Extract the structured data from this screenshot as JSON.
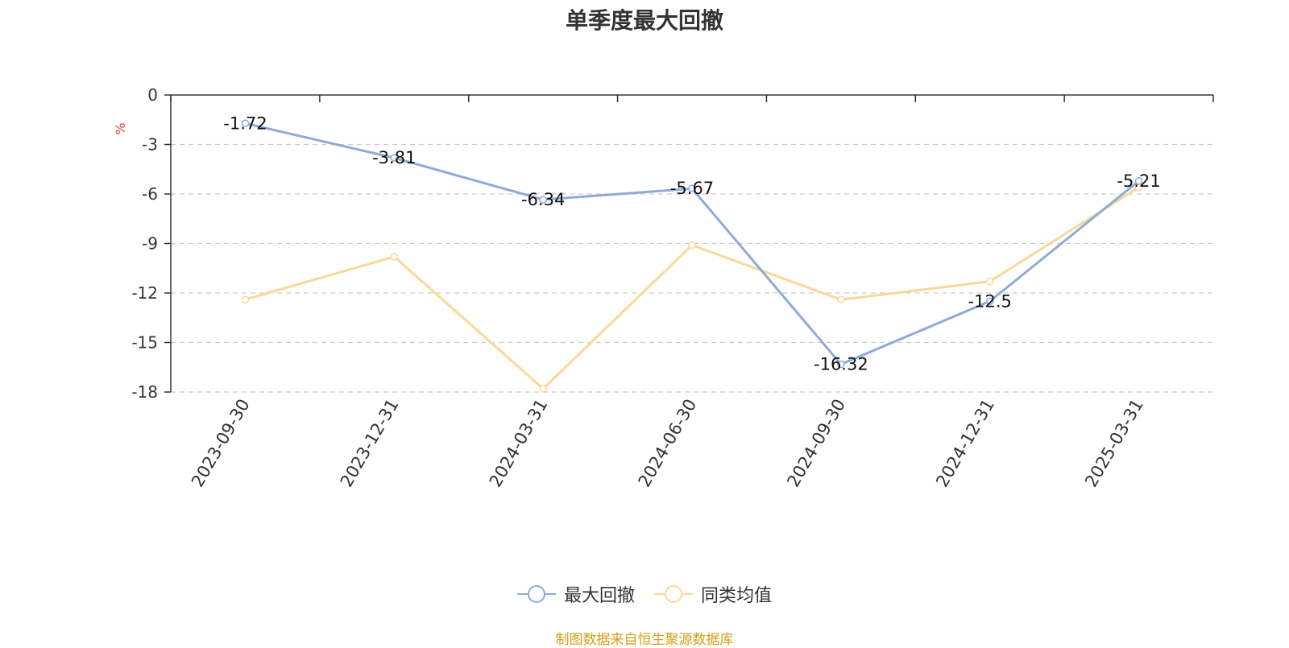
{
  "chart_data": {
    "type": "line",
    "title": "单季度最大回撤",
    "ylabel": "%",
    "xlabel": "",
    "categories": [
      "2023-09-30",
      "2023-12-31",
      "2024-03-31",
      "2024-06-30",
      "2024-09-30",
      "2024-12-31",
      "2025-03-31"
    ],
    "ylim": [
      -18,
      0
    ],
    "yticks": [
      0,
      -3,
      -6,
      -9,
      -12,
      -15,
      -18
    ],
    "grid": true,
    "legend_position": "bottom",
    "series": [
      {
        "name": "最大回撤",
        "values": [
          -1.72,
          -3.81,
          -6.34,
          -5.67,
          -16.32,
          -12.5,
          -5.21
        ],
        "color": "#8eabd8",
        "labels": [
          "-1.72",
          "-3.81",
          "-6.34",
          "-5.67",
          "-16.32",
          "-12.5",
          "-5.21"
        ]
      },
      {
        "name": "同类均值",
        "values": [
          -12.4,
          -9.8,
          -17.8,
          -9.1,
          -12.4,
          -11.3,
          -5.6
        ],
        "color": "#fad897"
      }
    ]
  },
  "colors": {
    "ylabel": "#e53935",
    "axis": "#333333",
    "grid": "#cccccc"
  },
  "footer": "制图数据来自恒生聚源数据库"
}
